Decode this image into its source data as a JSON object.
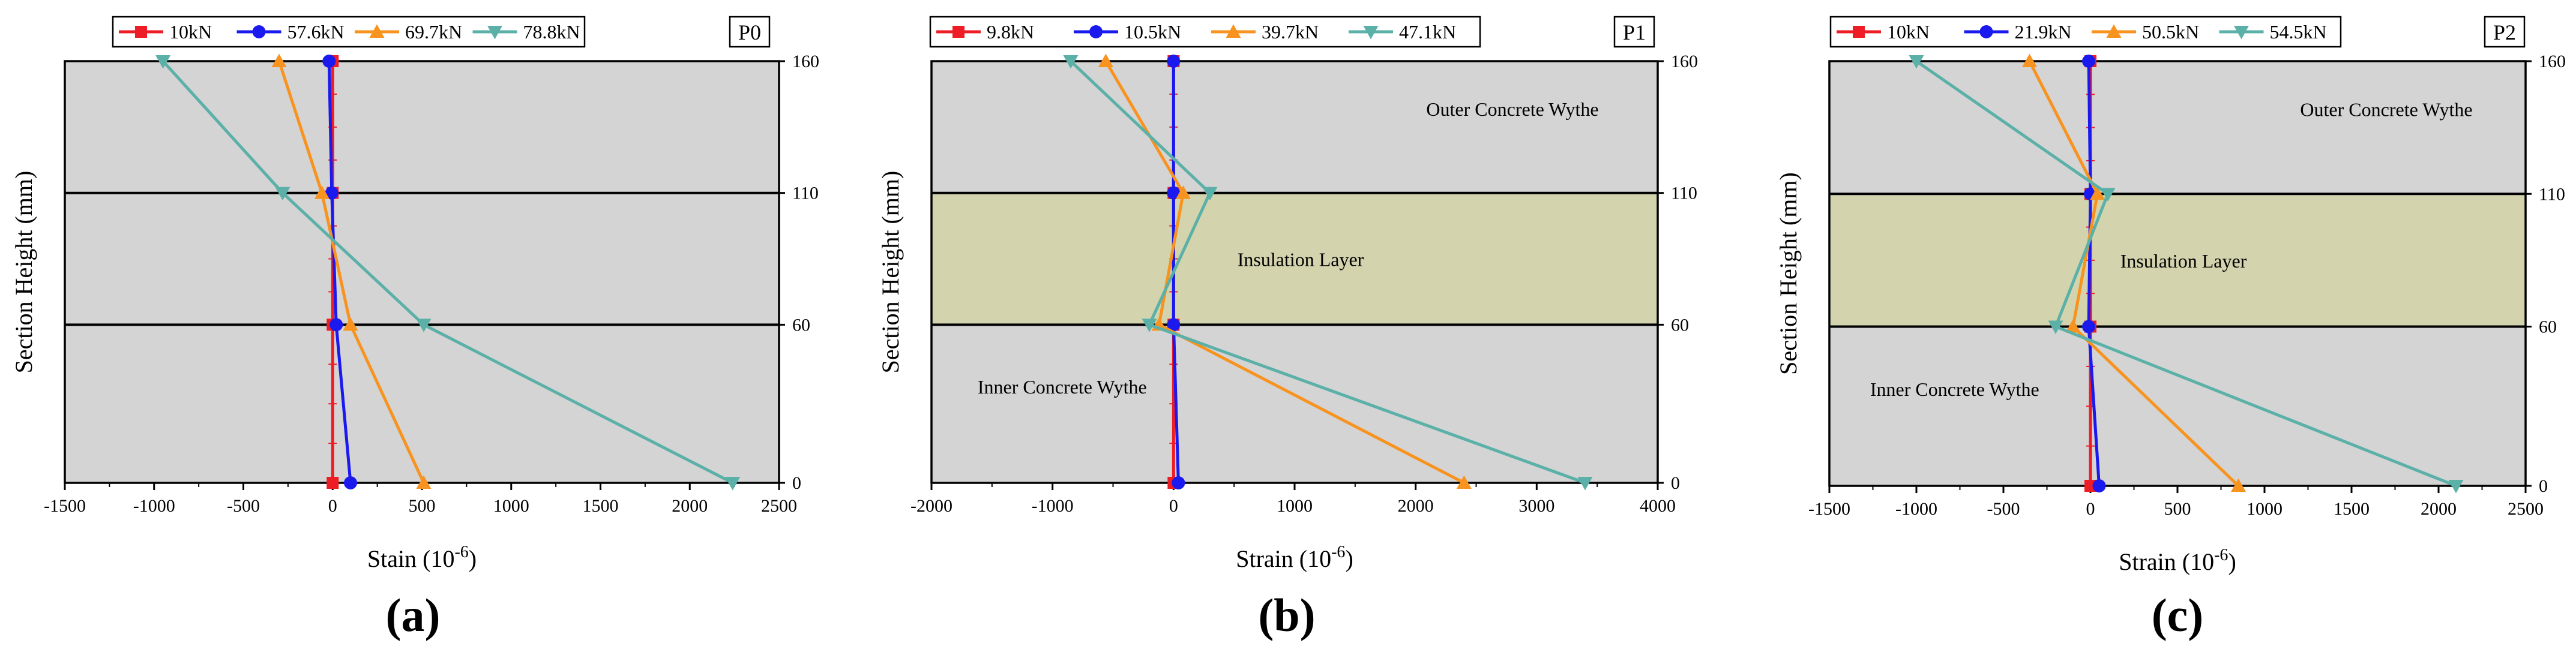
{
  "colors": {
    "concrete": "#d4d4d4",
    "insulation": "#d3d4ae",
    "series": [
      "#ee1c25",
      "#1a1aee",
      "#f7931e",
      "#5bb0a8"
    ]
  },
  "chart_data": [
    {
      "type": "line",
      "panel_id": "P0",
      "caption": "(a)",
      "xlabel": "Stain (10",
      "xlabel_sup": "-6",
      "xlabel_close": ")",
      "ylabel": "Section Height (mm)",
      "xlim": [
        -1500,
        2500
      ],
      "x_ticks": [
        -1500,
        -1000,
        -500,
        0,
        500,
        1000,
        1500,
        2000,
        2500
      ],
      "ylim": [
        0,
        160
      ],
      "y_ticks": [
        0,
        60,
        110,
        160
      ],
      "layers": [
        {
          "kind": "concrete",
          "from": 0,
          "to": 60,
          "label": ""
        },
        {
          "kind": "concrete",
          "from": 60,
          "to": 110,
          "label": ""
        },
        {
          "kind": "concrete",
          "from": 110,
          "to": 160,
          "label": ""
        }
      ],
      "series": [
        {
          "name": "10kN",
          "marker": "square",
          "points": [
            {
              "y": 160,
              "x": 0
            },
            {
              "y": 110,
              "x": 0
            },
            {
              "y": 60,
              "x": 0
            },
            {
              "y": 0,
              "x": 0
            }
          ]
        },
        {
          "name": "57.6kN",
          "marker": "circle",
          "points": [
            {
              "y": 160,
              "x": -20
            },
            {
              "y": 110,
              "x": -5
            },
            {
              "y": 60,
              "x": 20
            },
            {
              "y": 0,
              "x": 100
            }
          ]
        },
        {
          "name": "69.7kN",
          "marker": "triangle-up",
          "points": [
            {
              "y": 160,
              "x": -300
            },
            {
              "y": 110,
              "x": -60
            },
            {
              "y": 60,
              "x": 100
            },
            {
              "y": 0,
              "x": 510
            }
          ]
        },
        {
          "name": "78.8kN",
          "marker": "triangle-down",
          "points": [
            {
              "y": 160,
              "x": -950
            },
            {
              "y": 110,
              "x": -280
            },
            {
              "y": 60,
              "x": 510
            },
            {
              "y": 0,
              "x": 2240
            }
          ]
        }
      ]
    },
    {
      "type": "line",
      "panel_id": "P1",
      "caption": "(b)",
      "xlabel": "Strain (10",
      "xlabel_sup": "-6",
      "xlabel_close": ")",
      "ylabel": "Section Height (mm)",
      "xlim": [
        -2000,
        4000
      ],
      "x_ticks": [
        -2000,
        -1000,
        0,
        1000,
        2000,
        3000,
        4000
      ],
      "ylim": [
        0,
        160
      ],
      "y_ticks": [
        0,
        60,
        110,
        160
      ],
      "layers": [
        {
          "kind": "concrete",
          "from": 0,
          "to": 60,
          "label": "Inner Concrete Wythe"
        },
        {
          "kind": "insulation",
          "from": 60,
          "to": 110,
          "label": "Insulation Layer"
        },
        {
          "kind": "concrete",
          "from": 110,
          "to": 160,
          "label": "Outer Concrete Wythe"
        }
      ],
      "series": [
        {
          "name": "9.8kN",
          "marker": "square",
          "points": [
            {
              "y": 160,
              "x": 0
            },
            {
              "y": 110,
              "x": 0
            },
            {
              "y": 60,
              "x": 0
            },
            {
              "y": 0,
              "x": 0
            }
          ]
        },
        {
          "name": "10.5kN",
          "marker": "circle",
          "points": [
            {
              "y": 160,
              "x": 0
            },
            {
              "y": 110,
              "x": 0
            },
            {
              "y": 60,
              "x": 0
            },
            {
              "y": 0,
              "x": 40
            }
          ]
        },
        {
          "name": "39.7kN",
          "marker": "triangle-up",
          "points": [
            {
              "y": 160,
              "x": -560
            },
            {
              "y": 110,
              "x": 80
            },
            {
              "y": 60,
              "x": -120
            },
            {
              "y": 0,
              "x": 2400
            }
          ]
        },
        {
          "name": "47.1kN",
          "marker": "triangle-down",
          "points": [
            {
              "y": 160,
              "x": -850
            },
            {
              "y": 110,
              "x": 300
            },
            {
              "y": 60,
              "x": -200
            },
            {
              "y": 0,
              "x": 3400
            }
          ]
        }
      ]
    },
    {
      "type": "line",
      "panel_id": "P2",
      "caption": "(c)",
      "xlabel": "Strain (10",
      "xlabel_sup": "-6",
      "xlabel_close": ")",
      "ylabel": "Section Height (mm)",
      "xlim": [
        -1500,
        2500
      ],
      "x_ticks": [
        -1500,
        -1000,
        -500,
        0,
        500,
        1000,
        1500,
        2000,
        2500
      ],
      "ylim": [
        0,
        160
      ],
      "y_ticks": [
        0,
        60,
        110,
        160
      ],
      "layers": [
        {
          "kind": "concrete",
          "from": 0,
          "to": 60,
          "label": "Inner Concrete Wythe"
        },
        {
          "kind": "insulation",
          "from": 60,
          "to": 110,
          "label": "Insulation Layer"
        },
        {
          "kind": "concrete",
          "from": 110,
          "to": 160,
          "label": "Outer Concrete Wythe"
        }
      ],
      "series": [
        {
          "name": "10kN",
          "marker": "square",
          "points": [
            {
              "y": 160,
              "x": 0
            },
            {
              "y": 110,
              "x": 0
            },
            {
              "y": 60,
              "x": 0
            },
            {
              "y": 0,
              "x": 0
            }
          ]
        },
        {
          "name": "21.9kN",
          "marker": "circle",
          "points": [
            {
              "y": 160,
              "x": -10
            },
            {
              "y": 110,
              "x": 0
            },
            {
              "y": 60,
              "x": -10
            },
            {
              "y": 0,
              "x": 50
            }
          ]
        },
        {
          "name": "50.5kN",
          "marker": "triangle-up",
          "points": [
            {
              "y": 160,
              "x": -350
            },
            {
              "y": 110,
              "x": 40
            },
            {
              "y": 60,
              "x": -100
            },
            {
              "y": 0,
              "x": 850
            }
          ]
        },
        {
          "name": "54.5kN",
          "marker": "triangle-down",
          "points": [
            {
              "y": 160,
              "x": -1000
            },
            {
              "y": 110,
              "x": 100
            },
            {
              "y": 60,
              "x": -200
            },
            {
              "y": 0,
              "x": 2100
            }
          ]
        }
      ]
    }
  ]
}
